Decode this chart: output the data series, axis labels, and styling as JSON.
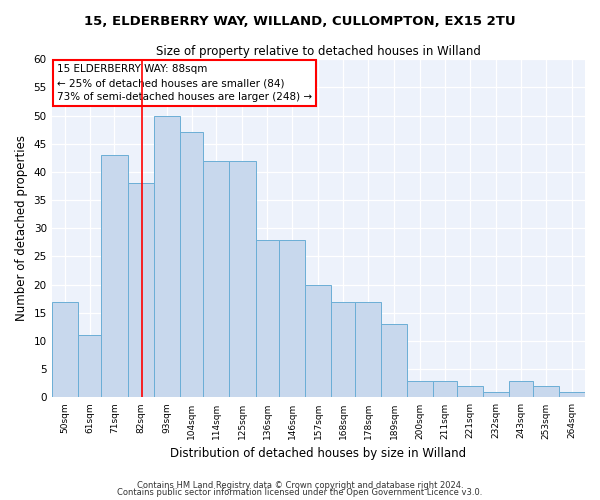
{
  "title1": "15, ELDERBERRY WAY, WILLAND, CULLOMPTON, EX15 2TU",
  "title2": "Size of property relative to detached houses in Willand",
  "xlabel": "Distribution of detached houses by size in Willand",
  "ylabel": "Number of detached properties",
  "bar_labels": [
    "50sqm",
    "61sqm",
    "71sqm",
    "82sqm",
    "93sqm",
    "104sqm",
    "114sqm",
    "125sqm",
    "136sqm",
    "146sqm",
    "157sqm",
    "168sqm",
    "178sqm",
    "189sqm",
    "200sqm",
    "211sqm",
    "221sqm",
    "232sqm",
    "243sqm",
    "253sqm",
    "264sqm"
  ],
  "bar_heights": [
    17,
    11,
    43,
    38,
    50,
    47,
    42,
    42,
    28,
    28,
    20,
    17,
    17,
    13,
    3,
    3,
    2,
    1,
    3,
    2,
    1
  ],
  "bar_color": "#c8d8ed",
  "bar_edge_color": "#6baed6",
  "annotation_box_text": "15 ELDERBERRY WAY: 88sqm\n← 25% of detached houses are smaller (84)\n73% of semi-detached houses are larger (248) →",
  "footnote1": "Contains HM Land Registry data © Crown copyright and database right 2024.",
  "footnote2": "Contains public sector information licensed under the Open Government Licence v3.0.",
  "ylim": [
    0,
    60
  ],
  "yticks": [
    0,
    5,
    10,
    15,
    20,
    25,
    30,
    35,
    40,
    45,
    50,
    55,
    60
  ],
  "background_color": "#edf2fb",
  "bar_left_edges": [
    50,
    61,
    71,
    82,
    93,
    104,
    114,
    125,
    136,
    146,
    157,
    168,
    178,
    189,
    200,
    211,
    221,
    232,
    243,
    253,
    264
  ],
  "bar_widths": [
    11,
    10,
    11,
    11,
    11,
    10,
    11,
    11,
    10,
    11,
    11,
    10,
    11,
    11,
    11,
    10,
    11,
    11,
    10,
    11,
    11
  ],
  "red_line_x": 88,
  "xmin": 50,
  "xmax": 275
}
